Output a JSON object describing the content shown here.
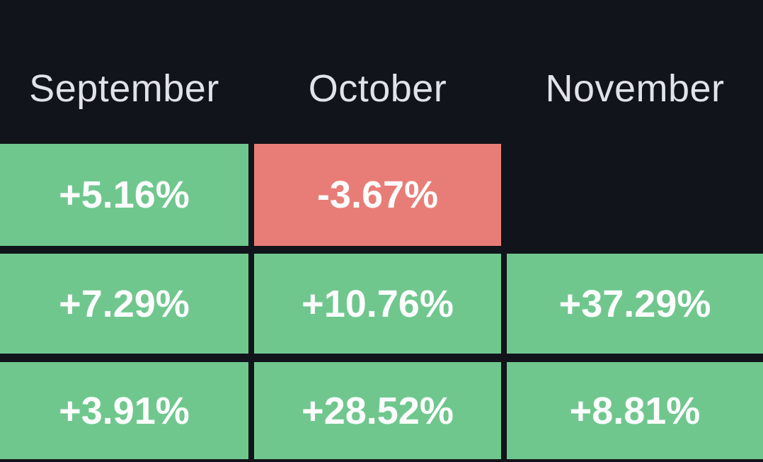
{
  "colors": {
    "background": "#12141b",
    "positive": "#70c78e",
    "negative": "#e87d77",
    "header-text": "#e0e3e8",
    "value-text": "#fdfdfd"
  },
  "chart_data": {
    "type": "heatmap",
    "categories": [
      "September",
      "October",
      "November"
    ],
    "rows": [
      {
        "cells": [
          "+5.16%",
          "-3.67%",
          ""
        ],
        "values": [
          5.16,
          -3.67,
          null
        ]
      },
      {
        "cells": [
          "+7.29%",
          "+10.76%",
          "+37.29%"
        ],
        "values": [
          7.29,
          10.76,
          37.29
        ]
      },
      {
        "cells": [
          "+3.91%",
          "+28.52%",
          "+8.81%"
        ],
        "values": [
          3.91,
          28.52,
          8.81
        ]
      }
    ],
    "unit": "%",
    "color_rule": "positive=green, negative=red, missing=dark background"
  }
}
